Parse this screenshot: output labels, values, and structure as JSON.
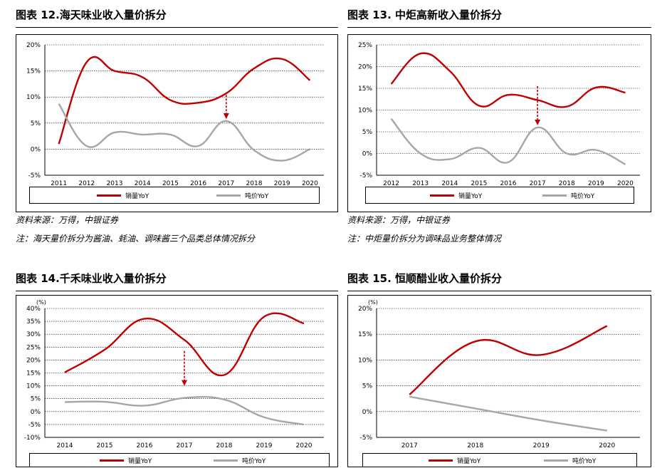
{
  "panels": [
    {
      "title": "图表 12.海天味业收入量价拆分",
      "source": "资料来源：万得，中银证券",
      "note": "注：海天量价拆分为酱油、蚝油、调味酱三个品类总体情况拆分",
      "legend": {
        "volume": "销量YoY",
        "price": "吨价YoY"
      }
    },
    {
      "title": "图表 13. 中炬高新收入量价拆分",
      "source": "资料来源：万得，中银证券",
      "note": "注：中炬量价拆分为调味品业务整体情况",
      "legend": {
        "volume": "销量YoY",
        "price": "吨价YoY"
      }
    },
    {
      "title": "图表 14.千禾味业收入量价拆分",
      "source": "",
      "note": "",
      "legend": {
        "volume": "销量YoY",
        "price": "吨价YoY"
      }
    },
    {
      "title": "图表 15. 恒顺醋业收入量价拆分",
      "source": "",
      "note": "",
      "legend": {
        "volume": "销量YoY",
        "price": "吨价YoY"
      }
    }
  ],
  "colors": {
    "volume": "#c00000",
    "price": "#a6a6a6",
    "arrow": "#c00000",
    "grid": "#000000"
  },
  "chart_data": [
    {
      "type": "line",
      "unit_label": "",
      "categories": [
        "2011",
        "2012",
        "2013",
        "2014",
        "2015",
        "2016",
        "2017",
        "2018",
        "2019",
        "2020"
      ],
      "ylim": [
        -5,
        20
      ],
      "yticks": [
        "-5%",
        "0%",
        "5%",
        "10%",
        "15%",
        "20%"
      ],
      "ytick_values": [
        -5,
        0,
        5,
        10,
        15,
        20
      ],
      "grid": true,
      "legend_position": "bottom",
      "series": [
        {
          "name": "销量YoY",
          "key": "volume",
          "values": [
            1.0,
            16.7,
            15.0,
            13.8,
            9.4,
            8.9,
            10.7,
            15.5,
            17.3,
            13.2
          ]
        },
        {
          "name": "吨价YoY",
          "key": "price",
          "values": [
            8.7,
            0.6,
            3.2,
            2.8,
            2.8,
            0.6,
            5.4,
            -0.2,
            -2.2,
            0.0
          ]
        }
      ],
      "arrow": {
        "category": "2017",
        "from": 10.4,
        "to": 5.8
      }
    },
    {
      "type": "line",
      "unit_label": "",
      "categories": [
        "2012",
        "2013",
        "2014",
        "2015",
        "2016",
        "2017",
        "2018",
        "2019",
        "2020"
      ],
      "ylim": [
        -5,
        25
      ],
      "yticks": [
        "-5%",
        "0%",
        "5%",
        "10%",
        "15%",
        "20%",
        "25%"
      ],
      "ytick_values": [
        -5,
        0,
        5,
        10,
        15,
        20,
        25
      ],
      "grid": true,
      "legend_position": "bottom",
      "series": [
        {
          "name": "销量YoY",
          "key": "volume",
          "values": [
            16.0,
            23.0,
            19.0,
            11.0,
            13.5,
            12.3,
            10.8,
            15.2,
            14.0
          ]
        },
        {
          "name": "吨价YoY",
          "key": "price",
          "values": [
            8.0,
            0.0,
            -1.3,
            1.3,
            -2.0,
            6.0,
            0.0,
            0.8,
            -2.5
          ]
        }
      ],
      "arrow": {
        "category": "2017",
        "from": 15.5,
        "to": 6.5
      }
    },
    {
      "type": "line",
      "unit_label": "(%)",
      "categories": [
        "2014",
        "2015",
        "2016",
        "2017",
        "2018",
        "2019",
        "2020"
      ],
      "ylim": [
        -10,
        40
      ],
      "yticks": [
        "-10%",
        "-5%",
        "0%",
        "5%",
        "10%",
        "15%",
        "20%",
        "25%",
        "30%",
        "35%",
        "40%"
      ],
      "ytick_values": [
        -10,
        -5,
        0,
        5,
        10,
        15,
        20,
        25,
        30,
        35,
        40
      ],
      "grid": true,
      "legend_position": "bottom",
      "series": [
        {
          "name": "销量YoY",
          "key": "volume",
          "values": [
            15.2,
            24.0,
            36.0,
            27.8,
            14.2,
            36.8,
            34.2
          ]
        },
        {
          "name": "吨价YoY",
          "key": "price",
          "values": [
            3.7,
            3.8,
            2.3,
            5.3,
            4.7,
            -2.2,
            -5.0
          ]
        }
      ],
      "arrow": {
        "category": "2017",
        "from": 23.5,
        "to": 10.0
      }
    },
    {
      "type": "line",
      "unit_label": "(%)",
      "categories": [
        "2017",
        "2018",
        "2019",
        "2020"
      ],
      "ylim": [
        -5,
        20
      ],
      "yticks": [
        "-5%",
        "0%",
        "5%",
        "10%",
        "15%",
        "20%"
      ],
      "ytick_values": [
        -5,
        0,
        5,
        10,
        15,
        20
      ],
      "grid": true,
      "legend_position": "bottom",
      "series": [
        {
          "name": "销量YoY",
          "key": "volume",
          "values": [
            3.3,
            13.6,
            11.0,
            16.6
          ]
        },
        {
          "name": "吨价YoY",
          "key": "price",
          "values": [
            2.9,
            0.6,
            -1.7,
            -3.7
          ]
        }
      ],
      "arrow": null
    }
  ]
}
